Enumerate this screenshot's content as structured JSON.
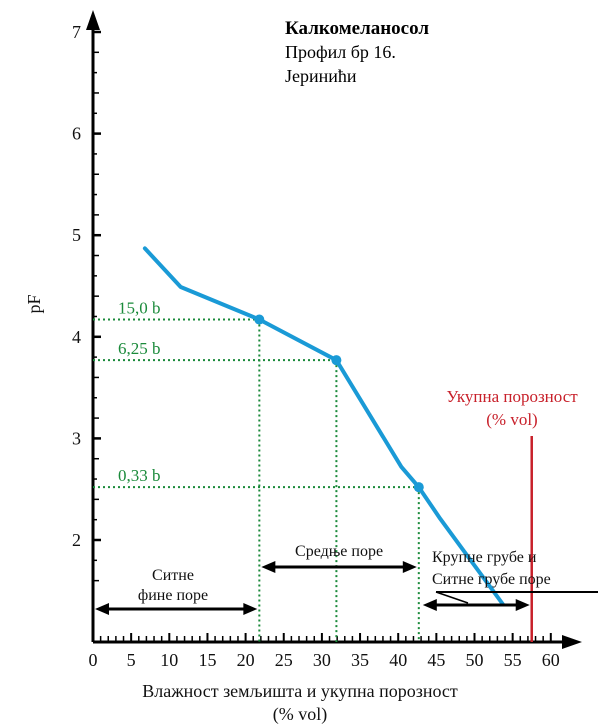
{
  "chart_data": {
    "type": "line",
    "title_lines": [
      "Калкомеланосол",
      "Профил бр 16.",
      "Јеринићи"
    ],
    "xlabel_lines": [
      "Влажност земљишта и укупна порозност",
      "(% vol)"
    ],
    "ylabel": "pF",
    "xlim": [
      0,
      60
    ],
    "ylim": [
      1,
      7
    ],
    "x_ticks": [
      0,
      5,
      10,
      15,
      20,
      25,
      30,
      35,
      40,
      45,
      50,
      55,
      60
    ],
    "y_ticks": [
      2,
      3,
      4,
      5,
      6,
      7
    ],
    "series": [
      {
        "color": "#1a9ad6",
        "x": [
          6.8,
          11.5,
          21.8,
          31.9,
          40.4,
          42.7,
          45.5,
          53.7
        ],
        "y": [
          4.87,
          4.49,
          4.17,
          3.77,
          2.72,
          2.52,
          2.21,
          1.37
        ]
      }
    ],
    "marked_points": [
      {
        "label": "15,0 b",
        "x": 21.8,
        "y": 4.17
      },
      {
        "label": "6,25 b",
        "x": 31.9,
        "y": 3.77
      },
      {
        "label": "0,33 b",
        "x": 42.7,
        "y": 2.52
      }
    ],
    "total_porosity": {
      "x": 57.5,
      "label_lines": [
        "Укупна порозност",
        "(% vol)"
      ],
      "color": "#c8202a"
    },
    "pore_zones": [
      {
        "label_lines": [
          "Ситне",
          "фине поре"
        ],
        "x_from": 0,
        "x_to": 21.8
      },
      {
        "label_lines": [
          "Средње поре"
        ],
        "x_from": 21.8,
        "x_to": 42.7
      },
      {
        "label_lines": [
          "Крупне грубе и",
          "Ситне грубе поре"
        ],
        "x_from": 42.7,
        "x_to": 57.5
      }
    ],
    "grid": false
  }
}
